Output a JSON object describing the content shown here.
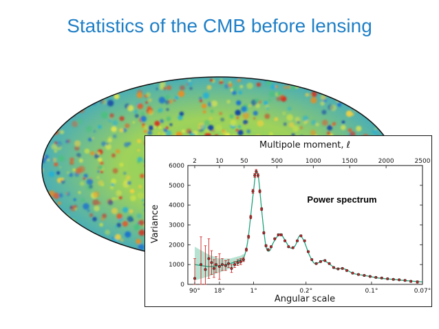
{
  "slide": {
    "title": "Statistics of the CMB before lensing",
    "colors": {
      "title": "#1f7fc6",
      "frame": "#111111"
    }
  },
  "chart_data": {
    "type": "line",
    "top_axis_label": "Multipole moment, ℓ",
    "xlabel": "Angular scale",
    "ylabel": "Variance",
    "annotation": "Power spectrum",
    "top_ticks": [
      "2",
      "10",
      "50",
      "500",
      "1000",
      "1500",
      "2000",
      "2500"
    ],
    "top_tick_values": [
      2,
      10,
      50,
      500,
      1000,
      1500,
      2000,
      2500
    ],
    "bottom_ticks": [
      "90°",
      "18°",
      "1°",
      "0.2°",
      "0.1°",
      "0.07°"
    ],
    "bottom_tick_values": [
      2,
      10,
      180,
      900,
      1800,
      2500
    ],
    "y_ticks": [
      "0",
      "1000",
      "2000",
      "3000",
      "4000",
      "5000",
      "6000"
    ],
    "y_tick_values": [
      0,
      1000,
      2000,
      3000,
      4000,
      5000,
      6000
    ],
    "xlim": [
      2,
      2500
    ],
    "ylim": [
      0,
      6000
    ],
    "x_scale": "log below ℓ=50, linear above",
    "grid": false,
    "colors": {
      "model": "#20a07a",
      "variance_band": "#9fd8c2",
      "points": "#cc2222",
      "error_bars": "#cc2222"
    },
    "model_curve": [
      {
        "l": 2,
        "v": 1000
      },
      {
        "l": 5,
        "v": 900
      },
      {
        "l": 10,
        "v": 950
      },
      {
        "l": 20,
        "v": 1050
      },
      {
        "l": 40,
        "v": 1250
      },
      {
        "l": 50,
        "v": 1400
      },
      {
        "l": 100,
        "v": 2200
      },
      {
        "l": 150,
        "v": 3800
      },
      {
        "l": 200,
        "v": 5400
      },
      {
        "l": 220,
        "v": 5750
      },
      {
        "l": 250,
        "v": 5300
      },
      {
        "l": 300,
        "v": 3400
      },
      {
        "l": 350,
        "v": 1900
      },
      {
        "l": 400,
        "v": 1700
      },
      {
        "l": 450,
        "v": 2100
      },
      {
        "l": 540,
        "v": 2550
      },
      {
        "l": 600,
        "v": 2300
      },
      {
        "l": 680,
        "v": 1850
      },
      {
        "l": 750,
        "v": 1950
      },
      {
        "l": 810,
        "v": 2450
      },
      {
        "l": 870,
        "v": 2200
      },
      {
        "l": 950,
        "v": 1450
      },
      {
        "l": 1020,
        "v": 1050
      },
      {
        "l": 1100,
        "v": 1150
      },
      {
        "l": 1150,
        "v": 1200
      },
      {
        "l": 1250,
        "v": 950
      },
      {
        "l": 1300,
        "v": 800
      },
      {
        "l": 1380,
        "v": 800
      },
      {
        "l": 1450,
        "v": 750
      },
      {
        "l": 1550,
        "v": 550
      },
      {
        "l": 1700,
        "v": 450
      },
      {
        "l": 1900,
        "v": 320
      },
      {
        "l": 2100,
        "v": 250
      },
      {
        "l": 2300,
        "v": 180
      },
      {
        "l": 2500,
        "v": 120
      }
    ],
    "variance_band": [
      {
        "l": 2,
        "lo": 200,
        "hi": 1900
      },
      {
        "l": 5,
        "lo": 400,
        "hi": 1500
      },
      {
        "l": 10,
        "lo": 600,
        "hi": 1300
      },
      {
        "l": 20,
        "lo": 800,
        "hi": 1300
      },
      {
        "l": 40,
        "lo": 1050,
        "hi": 1450
      },
      {
        "l": 50,
        "lo": 1250,
        "hi": 1550
      }
    ],
    "points": [
      {
        "l": 2,
        "v": 300,
        "err": 1000
      },
      {
        "l": 3,
        "v": 1000,
        "err": 1400
      },
      {
        "l": 4,
        "v": 750,
        "err": 1200
      },
      {
        "l": 5,
        "v": 1300,
        "err": 1000
      },
      {
        "l": 6,
        "v": 1100,
        "err": 600
      },
      {
        "l": 7,
        "v": 800,
        "err": 450
      },
      {
        "l": 8,
        "v": 1000,
        "err": 400
      },
      {
        "l": 10,
        "v": 900,
        "err": 650
      },
      {
        "l": 12,
        "v": 1000,
        "err": 300
      },
      {
        "l": 15,
        "v": 950,
        "err": 250
      },
      {
        "l": 18,
        "v": 1050,
        "err": 200
      },
      {
        "l": 22,
        "v": 800,
        "err": 200
      },
      {
        "l": 27,
        "v": 1000,
        "err": 150
      },
      {
        "l": 33,
        "v": 1100,
        "err": 150
      },
      {
        "l": 40,
        "v": 1150,
        "err": 150
      },
      {
        "l": 48,
        "v": 1250,
        "err": 100
      },
      {
        "l": 80,
        "v": 1750,
        "err": 80
      },
      {
        "l": 110,
        "v": 2400,
        "err": 80
      },
      {
        "l": 140,
        "v": 3400,
        "err": 90
      },
      {
        "l": 170,
        "v": 4700,
        "err": 100
      },
      {
        "l": 195,
        "v": 5500,
        "err": 100
      },
      {
        "l": 215,
        "v": 5700,
        "err": 100
      },
      {
        "l": 240,
        "v": 5500,
        "err": 90
      },
      {
        "l": 265,
        "v": 4700,
        "err": 80
      },
      {
        "l": 290,
        "v": 3800,
        "err": 70
      },
      {
        "l": 320,
        "v": 2600,
        "err": 60
      },
      {
        "l": 350,
        "v": 1950,
        "err": 55
      },
      {
        "l": 380,
        "v": 1750,
        "err": 50
      },
      {
        "l": 420,
        "v": 1900,
        "err": 50
      },
      {
        "l": 470,
        "v": 2300,
        "err": 50
      },
      {
        "l": 520,
        "v": 2500,
        "err": 50
      },
      {
        "l": 560,
        "v": 2500,
        "err": 50
      },
      {
        "l": 610,
        "v": 2200,
        "err": 45
      },
      {
        "l": 660,
        "v": 1900,
        "err": 45
      },
      {
        "l": 720,
        "v": 1850,
        "err": 45
      },
      {
        "l": 780,
        "v": 2200,
        "err": 45
      },
      {
        "l": 830,
        "v": 2450,
        "err": 45
      },
      {
        "l": 880,
        "v": 2200,
        "err": 45
      },
      {
        "l": 930,
        "v": 1650,
        "err": 45
      },
      {
        "l": 980,
        "v": 1250,
        "err": 40
      },
      {
        "l": 1040,
        "v": 1050,
        "err": 40
      },
      {
        "l": 1100,
        "v": 1150,
        "err": 40
      },
      {
        "l": 1160,
        "v": 1200,
        "err": 40
      },
      {
        "l": 1220,
        "v": 1050,
        "err": 40
      },
      {
        "l": 1280,
        "v": 850,
        "err": 40
      },
      {
        "l": 1340,
        "v": 780,
        "err": 40
      },
      {
        "l": 1400,
        "v": 800,
        "err": 40
      },
      {
        "l": 1460,
        "v": 700,
        "err": 40
      },
      {
        "l": 1540,
        "v": 570,
        "err": 40
      },
      {
        "l": 1620,
        "v": 500,
        "err": 40
      },
      {
        "l": 1700,
        "v": 450,
        "err": 40
      },
      {
        "l": 1780,
        "v": 400,
        "err": 40
      },
      {
        "l": 1860,
        "v": 350,
        "err": 40
      },
      {
        "l": 1940,
        "v": 320,
        "err": 40
      },
      {
        "l": 2020,
        "v": 280,
        "err": 40
      },
      {
        "l": 2100,
        "v": 250,
        "err": 40
      },
      {
        "l": 2180,
        "v": 230,
        "err": 40
      },
      {
        "l": 2260,
        "v": 200,
        "err": 45
      },
      {
        "l": 2340,
        "v": 150,
        "err": 50
      },
      {
        "l": 2430,
        "v": 120,
        "err": 60
      }
    ]
  }
}
